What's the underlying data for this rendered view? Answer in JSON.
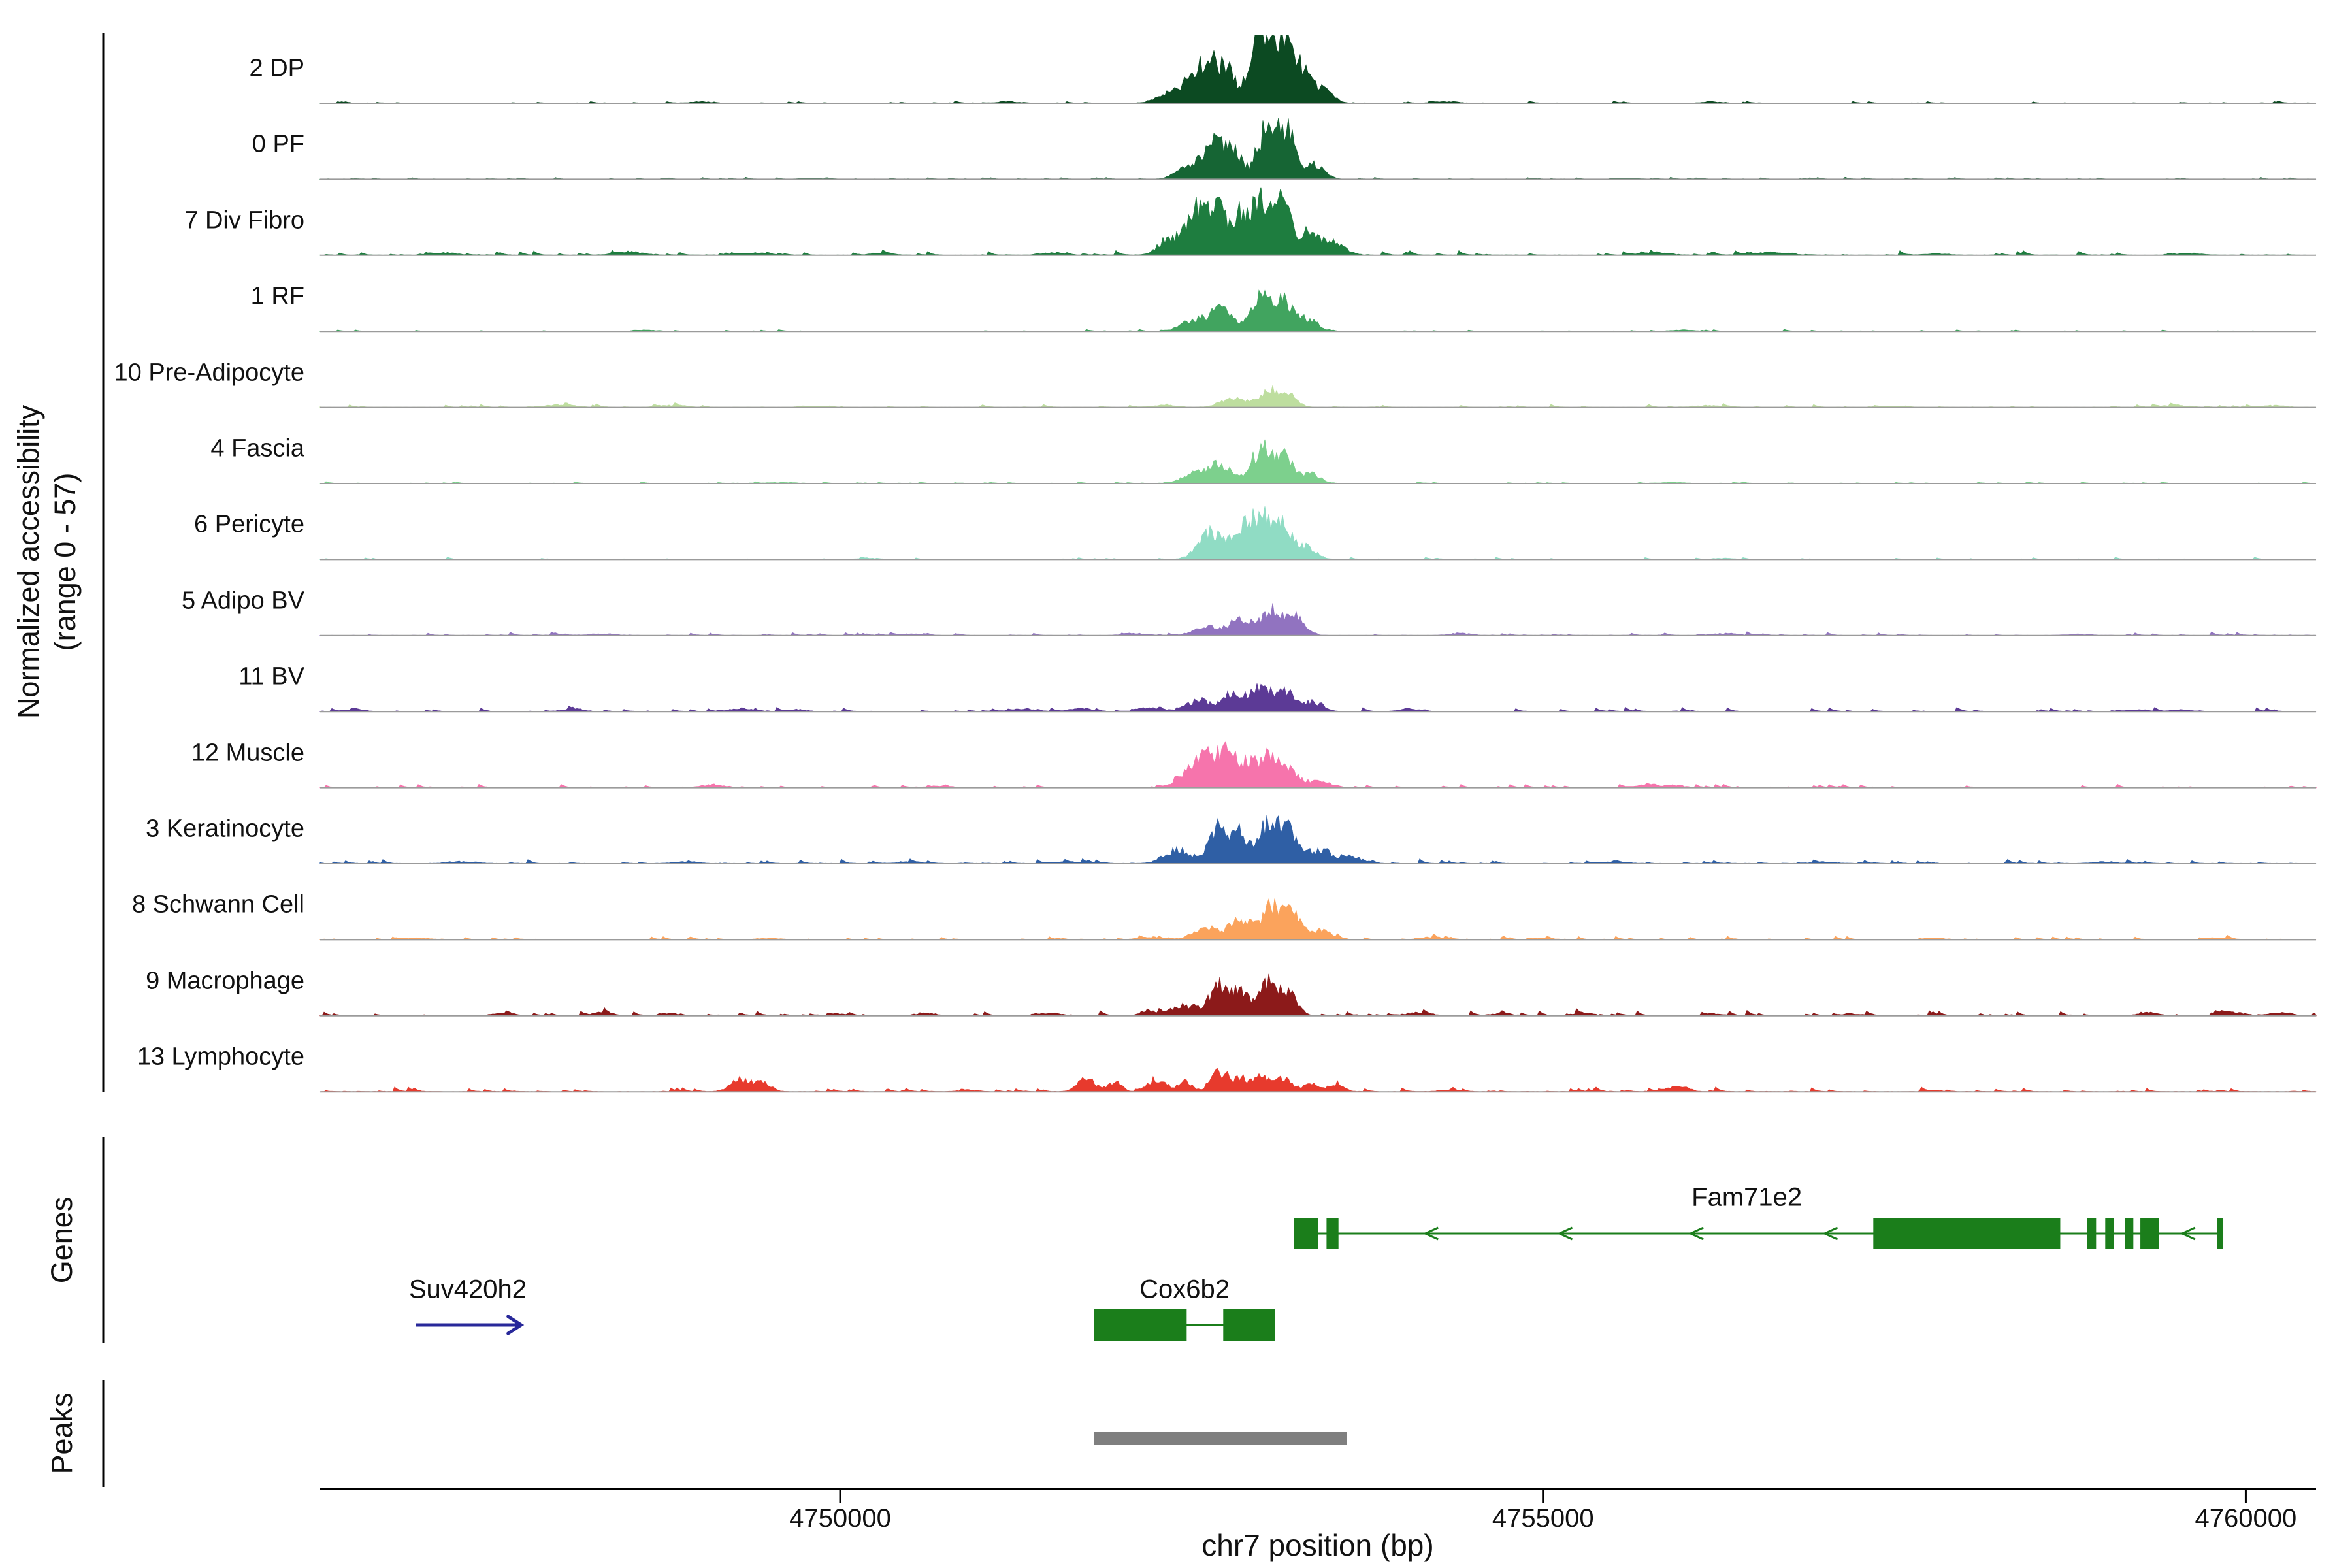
{
  "figure": {
    "y_axis_title_line1": "Normalized accessibility",
    "y_axis_title_line2": "(range 0 - 57)",
    "x_axis_title": "chr7 position (bp)",
    "genes_label": "Genes",
    "peaks_label": "Peaks"
  },
  "chart_data": {
    "type": "area",
    "subtype": "genome_browser_accessibility_tracks",
    "region": {
      "chrom": "chr7",
      "start": 4746300,
      "end": 4760500
    },
    "ylim": [
      0,
      57
    ],
    "x_ticks": [
      4750000,
      4755000,
      4760000
    ],
    "x_tick_labels": [
      "4750000",
      "4755000",
      "4760000"
    ],
    "colors": {
      "baseline": "#9b9b9b",
      "peak_bar": "#7f7f7f",
      "axis": "#000000"
    },
    "tracks": [
      {
        "label": "2 DP",
        "color": "#0c4a22",
        "noise": 0.6,
        "peaks": [
          [
            4752350,
            80,
            8
          ],
          [
            4752520,
            70,
            22
          ],
          [
            4752640,
            55,
            30
          ],
          [
            4752760,
            50,
            26
          ],
          [
            4752950,
            60,
            38
          ],
          [
            4753060,
            65,
            54
          ],
          [
            4753180,
            55,
            38
          ],
          [
            4753300,
            65,
            24
          ],
          [
            4753450,
            60,
            9
          ],
          [
            4749000,
            70,
            1.2
          ],
          [
            4751200,
            70,
            1
          ],
          [
            4754300,
            80,
            1
          ],
          [
            4756200,
            70,
            0.8
          ]
        ]
      },
      {
        "label": "0 PF",
        "color": "#166534",
        "noise": 0.5,
        "peaks": [
          [
            4752450,
            70,
            10
          ],
          [
            4752650,
            75,
            30
          ],
          [
            4752800,
            55,
            22
          ],
          [
            4753050,
            75,
            46
          ],
          [
            4753200,
            55,
            34
          ],
          [
            4753380,
            60,
            12
          ],
          [
            4749800,
            70,
            0.8
          ],
          [
            4755600,
            70,
            0.8
          ]
        ]
      },
      {
        "label": "7 Div Fibro",
        "color": "#1e7d3f",
        "noise": 1.2,
        "peaks": [
          [
            4752350,
            80,
            14
          ],
          [
            4752550,
            70,
            40
          ],
          [
            4752700,
            55,
            34
          ],
          [
            4752850,
            60,
            30
          ],
          [
            4753000,
            70,
            47
          ],
          [
            4753150,
            55,
            36
          ],
          [
            4753320,
            70,
            20
          ],
          [
            4753500,
            80,
            10
          ],
          [
            4747200,
            80,
            1.8
          ],
          [
            4748500,
            100,
            2.2
          ],
          [
            4749400,
            80,
            1.8
          ],
          [
            4750300,
            80,
            1.2
          ],
          [
            4751500,
            80,
            1.8
          ],
          [
            4755800,
            100,
            1.8
          ],
          [
            4756600,
            120,
            2.2
          ],
          [
            4757800,
            80,
            1.2
          ],
          [
            4759600,
            80,
            1.5
          ]
        ]
      },
      {
        "label": "1 RF",
        "color": "#41a45f",
        "noise": 0.5,
        "peaks": [
          [
            4752500,
            80,
            8
          ],
          [
            4752700,
            85,
            17
          ],
          [
            4753000,
            75,
            27
          ],
          [
            4753160,
            60,
            22
          ],
          [
            4753330,
            65,
            10
          ],
          [
            4748600,
            80,
            1
          ],
          [
            4756000,
            80,
            0.8
          ]
        ]
      },
      {
        "label": "10 Pre-Adipocyte",
        "color": "#bede9f",
        "noise": 0.9,
        "peaks": [
          [
            4752800,
            90,
            7
          ],
          [
            4753050,
            70,
            15
          ],
          [
            4753200,
            55,
            9
          ],
          [
            4748000,
            100,
            1.8
          ],
          [
            4748800,
            90,
            1.6
          ],
          [
            4749800,
            80,
            1.1
          ],
          [
            4752300,
            80,
            1.5
          ],
          [
            4756200,
            100,
            1.4
          ],
          [
            4757500,
            80,
            1
          ],
          [
            4759500,
            100,
            1.4
          ],
          [
            4760200,
            80,
            1.4
          ]
        ]
      },
      {
        "label": "4 Fascia",
        "color": "#7dd08d",
        "noise": 0.6,
        "peaks": [
          [
            4752500,
            70,
            8
          ],
          [
            4752700,
            80,
            16
          ],
          [
            4753000,
            75,
            28
          ],
          [
            4753170,
            55,
            20
          ],
          [
            4753350,
            60,
            8
          ],
          [
            4749600,
            80,
            0.8
          ],
          [
            4755900,
            80,
            0.8
          ]
        ]
      },
      {
        "label": "6 Pericyte",
        "color": "#90dcc4",
        "noise": 0.6,
        "peaks": [
          [
            4752650,
            90,
            22
          ],
          [
            4752850,
            70,
            18
          ],
          [
            4753000,
            80,
            33
          ],
          [
            4753150,
            60,
            24
          ],
          [
            4753320,
            70,
            10
          ],
          [
            4750200,
            80,
            0.8
          ],
          [
            4756300,
            80,
            0.8
          ]
        ]
      },
      {
        "label": "5 Adipo BV",
        "color": "#9173c0",
        "noise": 0.9,
        "peaks": [
          [
            4752600,
            80,
            7
          ],
          [
            4752850,
            85,
            13
          ],
          [
            4753080,
            70,
            21
          ],
          [
            4753250,
            65,
            13
          ],
          [
            4748300,
            90,
            1.4
          ],
          [
            4750500,
            80,
            1.1
          ],
          [
            4752100,
            80,
            1.5
          ],
          [
            4754400,
            80,
            1.2
          ],
          [
            4756300,
            90,
            1.4
          ],
          [
            4758800,
            80,
            0.9
          ]
        ]
      },
      {
        "label": "11 BV",
        "color": "#5c3a96",
        "noise": 1.1,
        "peaks": [
          [
            4752550,
            80,
            9
          ],
          [
            4752800,
            75,
            15
          ],
          [
            4753000,
            65,
            23
          ],
          [
            4753160,
            55,
            18
          ],
          [
            4753350,
            70,
            8
          ],
          [
            4746550,
            60,
            2
          ],
          [
            4748100,
            70,
            2
          ],
          [
            4749300,
            70,
            2.4
          ],
          [
            4749700,
            60,
            1.5
          ],
          [
            4751300,
            80,
            1.8
          ],
          [
            4751700,
            70,
            2.4
          ],
          [
            4752200,
            70,
            3
          ],
          [
            4754050,
            70,
            2
          ],
          [
            4759250,
            70,
            1.5
          ],
          [
            4759550,
            60,
            1.4
          ]
        ]
      },
      {
        "label": "12 Muscle",
        "color": "#f674ac",
        "noise": 0.9,
        "peaks": [
          [
            4752450,
            70,
            10
          ],
          [
            4752600,
            65,
            27
          ],
          [
            4752750,
            55,
            33
          ],
          [
            4752900,
            55,
            20
          ],
          [
            4753050,
            65,
            24
          ],
          [
            4753200,
            65,
            13
          ],
          [
            4753400,
            70,
            6
          ],
          [
            4749100,
            80,
            2.2
          ],
          [
            4750700,
            70,
            1.3
          ],
          [
            4755750,
            80,
            2.2
          ],
          [
            4755950,
            60,
            1.8
          ]
        ]
      },
      {
        "label": "3 Keratinocyte",
        "color": "#2f5fa5",
        "noise": 1.2,
        "peaks": [
          [
            4752400,
            90,
            11
          ],
          [
            4752700,
            75,
            29
          ],
          [
            4752850,
            55,
            21
          ],
          [
            4753050,
            75,
            34
          ],
          [
            4753200,
            55,
            22
          ],
          [
            4753400,
            80,
            11
          ],
          [
            4753650,
            80,
            5
          ],
          [
            4747300,
            100,
            1.4
          ],
          [
            4748900,
            90,
            1.4
          ],
          [
            4750500,
            90,
            1.1
          ],
          [
            4751600,
            90,
            1.2
          ],
          [
            4755500,
            100,
            1.1
          ],
          [
            4757000,
            90,
            1
          ],
          [
            4759000,
            90,
            1
          ]
        ]
      },
      {
        "label": "8 Schwann Cell",
        "color": "#fba35c",
        "noise": 0.9,
        "peaks": [
          [
            4752600,
            85,
            10
          ],
          [
            4752850,
            80,
            16
          ],
          [
            4753080,
            70,
            28
          ],
          [
            4753230,
            55,
            18
          ],
          [
            4753420,
            70,
            8
          ],
          [
            4747000,
            80,
            1.3
          ],
          [
            4749500,
            80,
            1.1
          ],
          [
            4752200,
            80,
            1.6
          ],
          [
            4754200,
            80,
            1.8
          ],
          [
            4755000,
            70,
            1.1
          ],
          [
            4757800,
            80,
            1.1
          ],
          [
            4759800,
            80,
            1.3
          ]
        ]
      },
      {
        "label": "9 Macrophage",
        "color": "#8c1a1a",
        "noise": 1.4,
        "peaks": [
          [
            4752700,
            70,
            24
          ],
          [
            4752850,
            55,
            18
          ],
          [
            4753050,
            70,
            27
          ],
          [
            4753200,
            55,
            16
          ],
          [
            4752450,
            80,
            8
          ],
          [
            4747600,
            80,
            1.8
          ],
          [
            4748300,
            70,
            2
          ],
          [
            4748800,
            70,
            1.7
          ],
          [
            4750000,
            70,
            1.4
          ],
          [
            4750600,
            70,
            1.7
          ],
          [
            4751500,
            70,
            1.8
          ],
          [
            4752200,
            70,
            2.6
          ],
          [
            4754100,
            80,
            2.2
          ],
          [
            4754700,
            70,
            1.8
          ],
          [
            4755300,
            70,
            1.6
          ],
          [
            4756200,
            70,
            1.4
          ],
          [
            4757200,
            70,
            1.2
          ],
          [
            4759300,
            80,
            1.8
          ],
          [
            4759900,
            90,
            2.6
          ],
          [
            4760250,
            70,
            2.2
          ]
        ]
      },
      {
        "label": "13 Lymphocyte",
        "color": "#e73a2d",
        "noise": 1.2,
        "peaks": [
          [
            4749280,
            60,
            11
          ],
          [
            4749430,
            50,
            9
          ],
          [
            4751750,
            60,
            10
          ],
          [
            4751950,
            50,
            7
          ],
          [
            4752250,
            60,
            10
          ],
          [
            4752450,
            50,
            8
          ],
          [
            4752700,
            60,
            16
          ],
          [
            4752850,
            50,
            10
          ],
          [
            4753000,
            60,
            12
          ],
          [
            4753150,
            50,
            9
          ],
          [
            4753350,
            60,
            7
          ],
          [
            4753520,
            50,
            5
          ],
          [
            4755950,
            70,
            4
          ],
          [
            4750900,
            60,
            1.3
          ],
          [
            4754300,
            60,
            1.3
          ],
          [
            4757800,
            60,
            0.8
          ]
        ]
      }
    ],
    "genes": [
      {
        "name": "Fam71e2",
        "color": "#1b7e1b",
        "strand": "-",
        "row": 0,
        "style": "model",
        "start": 4753230,
        "end": 4759840,
        "label_bp": 4756450,
        "exons": [
          [
            4753230,
            4753400
          ],
          [
            4753460,
            4753545
          ],
          [
            4757350,
            4758680
          ],
          [
            4758870,
            4758935
          ],
          [
            4759000,
            4759060
          ],
          [
            4759140,
            4759200
          ],
          [
            4759250,
            4759380
          ],
          [
            4759795,
            4759840
          ]
        ],
        "chevrons": [
          4754208,
          4755162,
          4756095,
          4757049,
          4759593
        ]
      },
      {
        "name": "Cox6b2",
        "color": "#1b7e1b",
        "strand": "+",
        "row": 1,
        "style": "model",
        "start": 4751805,
        "end": 4753095,
        "label_bp": 4752450,
        "exons": [
          [
            4751805,
            4752465
          ],
          [
            4752725,
            4753095
          ]
        ],
        "chevrons": []
      },
      {
        "name": "Suv420h2",
        "color": "#28289a",
        "strand": "+",
        "row": 1,
        "style": "arrow",
        "start": 4746980,
        "end": 4747730,
        "label_bp": 4747350,
        "exons": [],
        "chevrons": []
      }
    ],
    "peaks": [
      {
        "start": 4751805,
        "end": 4753605
      }
    ]
  }
}
